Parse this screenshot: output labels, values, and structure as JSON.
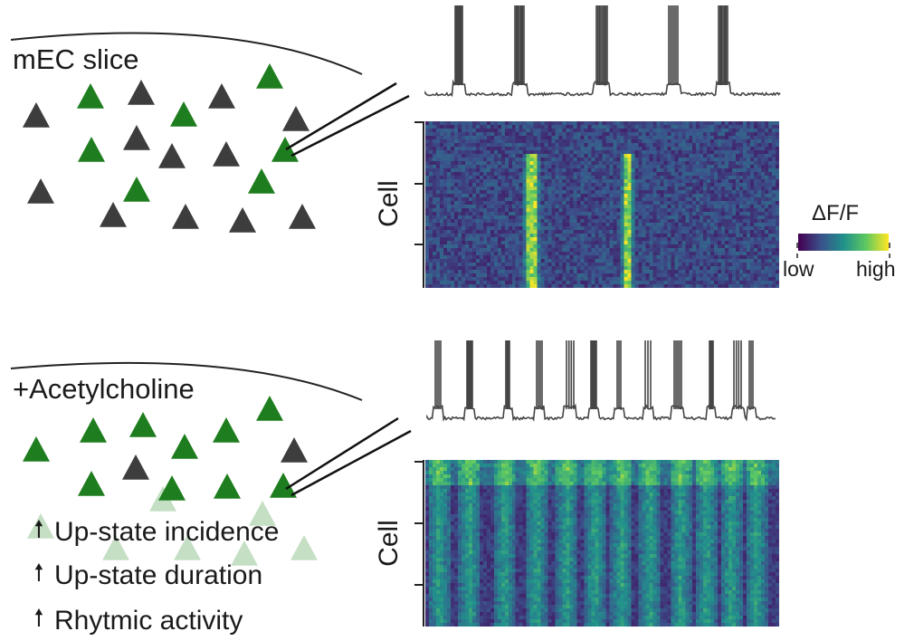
{
  "colors": {
    "active_neuron": "#1e7d1e",
    "inactive_neuron": "#3d3d3d",
    "faded_neuron": "#c5dfc5",
    "trace": "#454545",
    "colormap": [
      "#440154",
      "#3b528b",
      "#21918c",
      "#5ec962",
      "#fde725"
    ]
  },
  "top_panel": {
    "title": "mEC slice",
    "heatmap_axis_label": "Cell"
  },
  "bottom_panel": {
    "title": "+Acetylcholine",
    "heatmap_axis_label": "Cell",
    "effects": [
      {
        "icon": "up-arrow-icon",
        "text": "Up-state incidence"
      },
      {
        "icon": "up-arrow-icon",
        "text": "Up-state duration"
      },
      {
        "icon": "up-arrow-icon",
        "text": "Rhytmic activity"
      }
    ]
  },
  "colorbar": {
    "title": "ΔF/F",
    "low_label": "low",
    "high_label": "high"
  }
}
